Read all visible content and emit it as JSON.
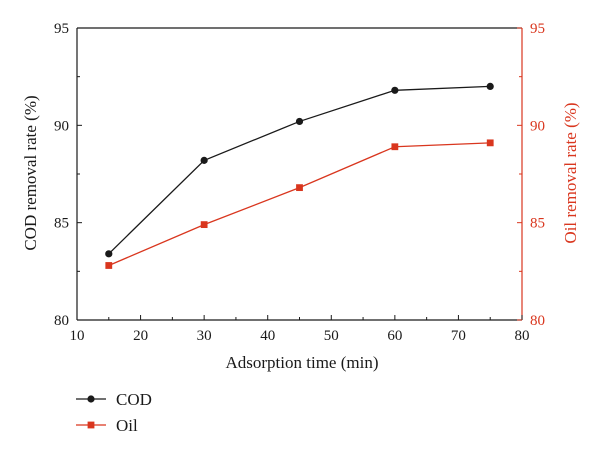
{
  "colors": {
    "cod": "#1a1a1a",
    "oil": "#d9361e",
    "axis": "#1a1a1a",
    "right_axis": "#d9361e"
  },
  "chart_data": {
    "type": "line",
    "title": "",
    "x": [
      15,
      30,
      45,
      60,
      75
    ],
    "xlabel": "Adsorption time (min)",
    "ylabel_left": "COD removal rate (%)",
    "ylabel_right": "Oil removal rate (%)",
    "xlim": [
      10,
      80
    ],
    "ylim_left": [
      80,
      95
    ],
    "ylim_right": [
      80,
      95
    ],
    "x_ticks": [
      "10",
      "20",
      "30",
      "40",
      "50",
      "60",
      "70",
      "80"
    ],
    "y_ticks_left": [
      "80",
      "85",
      "90",
      "95"
    ],
    "y_ticks_right": [
      "80",
      "85",
      "90",
      "95"
    ],
    "grid": false,
    "legend_position": "bottom-left, below plot",
    "series": [
      {
        "name": "COD",
        "axis": "left",
        "marker": "circle",
        "color": "#1a1a1a",
        "values": [
          83.4,
          88.2,
          90.2,
          91.8,
          92.0
        ]
      },
      {
        "name": "Oil",
        "axis": "right",
        "marker": "square",
        "color": "#d9361e",
        "values": [
          82.8,
          84.9,
          86.8,
          88.9,
          89.1
        ]
      }
    ]
  }
}
